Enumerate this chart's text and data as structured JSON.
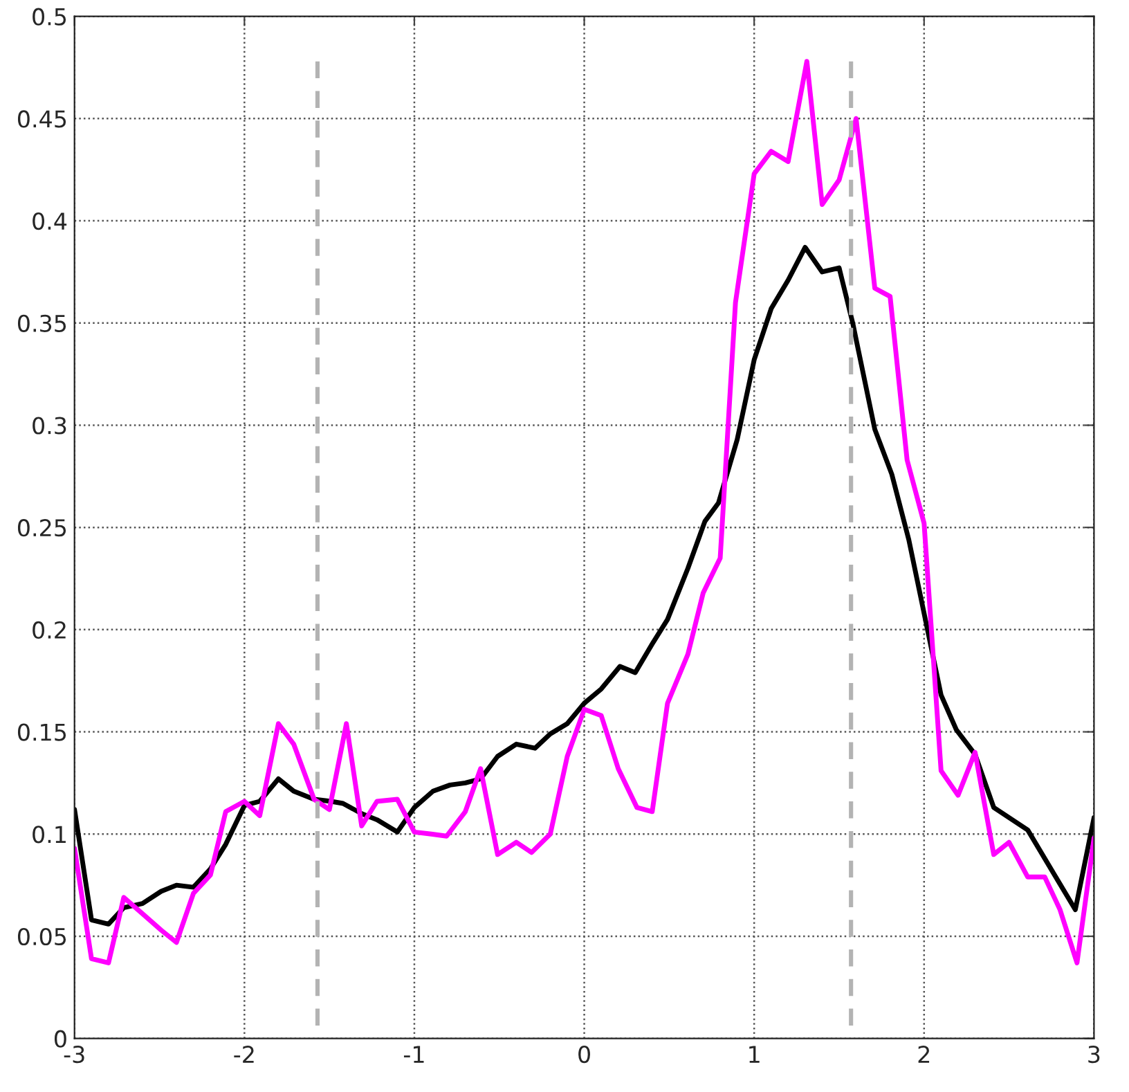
{
  "chart_data": {
    "type": "line",
    "xlim": [
      -3,
      3
    ],
    "ylim": [
      0,
      0.5
    ],
    "xticks": [
      -3,
      -2,
      -1,
      0,
      1,
      2,
      3
    ],
    "yticks": [
      0,
      0.05,
      0.1,
      0.15,
      0.2,
      0.25,
      0.3,
      0.35,
      0.4,
      0.45,
      0.5
    ],
    "grid": true,
    "marker": "none",
    "series": [
      {
        "color": "#000000",
        "line_style": "solid",
        "x": [
          -3.0,
          -2.9,
          -2.8,
          -2.71,
          -2.6,
          -2.49,
          -2.4,
          -2.3,
          -2.2,
          -2.11,
          -2.0,
          -1.91,
          -1.8,
          -1.71,
          -1.59,
          -1.49,
          -1.42,
          -1.31,
          -1.22,
          -1.1,
          -1.0,
          -0.89,
          -0.79,
          -0.7,
          -0.61,
          -0.51,
          -0.4,
          -0.29,
          -0.2,
          -0.1,
          0.0,
          0.1,
          0.21,
          0.3,
          0.4,
          0.49,
          0.61,
          0.71,
          0.79,
          0.9,
          1.0,
          1.1,
          1.2,
          1.3,
          1.4,
          1.5,
          1.58,
          1.71,
          1.81,
          1.91,
          2.1,
          2.19,
          2.3,
          2.41,
          2.61,
          2.89,
          3.0
        ],
        "values": [
          0.112,
          0.058,
          0.056,
          0.064,
          0.066,
          0.072,
          0.075,
          0.074,
          0.083,
          0.095,
          0.114,
          0.116,
          0.127,
          0.121,
          0.117,
          0.116,
          0.115,
          0.11,
          0.107,
          0.101,
          0.113,
          0.121,
          0.124,
          0.125,
          0.127,
          0.138,
          0.144,
          0.142,
          0.149,
          0.154,
          0.164,
          0.171,
          0.182,
          0.179,
          0.193,
          0.205,
          0.23,
          0.253,
          0.262,
          0.293,
          0.332,
          0.357,
          0.371,
          0.387,
          0.375,
          0.377,
          0.35,
          0.298,
          0.276,
          0.244,
          0.168,
          0.151,
          0.139,
          0.113,
          0.102,
          0.063,
          0.108
        ]
      },
      {
        "color": "#ff00ff",
        "line_style": "solid",
        "x": [
          -3.0,
          -2.9,
          -2.8,
          -2.71,
          -2.6,
          -2.49,
          -2.4,
          -2.3,
          -2.2,
          -2.11,
          -2.0,
          -1.91,
          -1.8,
          -1.71,
          -1.59,
          -1.5,
          -1.4,
          -1.31,
          -1.22,
          -1.1,
          -1.0,
          -0.9,
          -0.81,
          -0.7,
          -0.61,
          -0.51,
          -0.4,
          -0.31,
          -0.2,
          -0.1,
          0.0,
          0.1,
          0.2,
          0.31,
          0.4,
          0.49,
          0.61,
          0.7,
          0.8,
          0.89,
          1.0,
          1.1,
          1.2,
          1.31,
          1.4,
          1.5,
          1.6,
          1.71,
          1.8,
          1.9,
          2.0,
          2.1,
          2.2,
          2.3,
          2.41,
          2.5,
          2.61,
          2.71,
          2.8,
          2.9,
          3.0
        ],
        "values": [
          0.093,
          0.039,
          0.037,
          0.069,
          0.061,
          0.053,
          0.047,
          0.071,
          0.08,
          0.111,
          0.116,
          0.109,
          0.154,
          0.144,
          0.117,
          0.112,
          0.154,
          0.104,
          0.116,
          0.117,
          0.101,
          0.1,
          0.099,
          0.111,
          0.132,
          0.09,
          0.096,
          0.091,
          0.1,
          0.138,
          0.161,
          0.158,
          0.132,
          0.113,
          0.111,
          0.164,
          0.188,
          0.218,
          0.235,
          0.36,
          0.423,
          0.434,
          0.429,
          0.478,
          0.408,
          0.42,
          0.45,
          0.367,
          0.363,
          0.283,
          0.252,
          0.131,
          0.119,
          0.14,
          0.09,
          0.096,
          0.079,
          0.079,
          0.063,
          0.037,
          0.098
        ]
      },
      {
        "color": "#b3b3b3",
        "line_style": "dashed",
        "x": [
          -1.57,
          -1.57
        ],
        "values": [
          0.478,
          0
        ]
      },
      {
        "color": "#b3b3b3",
        "line_style": "dashed",
        "x": [
          1.57,
          1.57
        ],
        "values": [
          0.478,
          0
        ]
      }
    ]
  }
}
